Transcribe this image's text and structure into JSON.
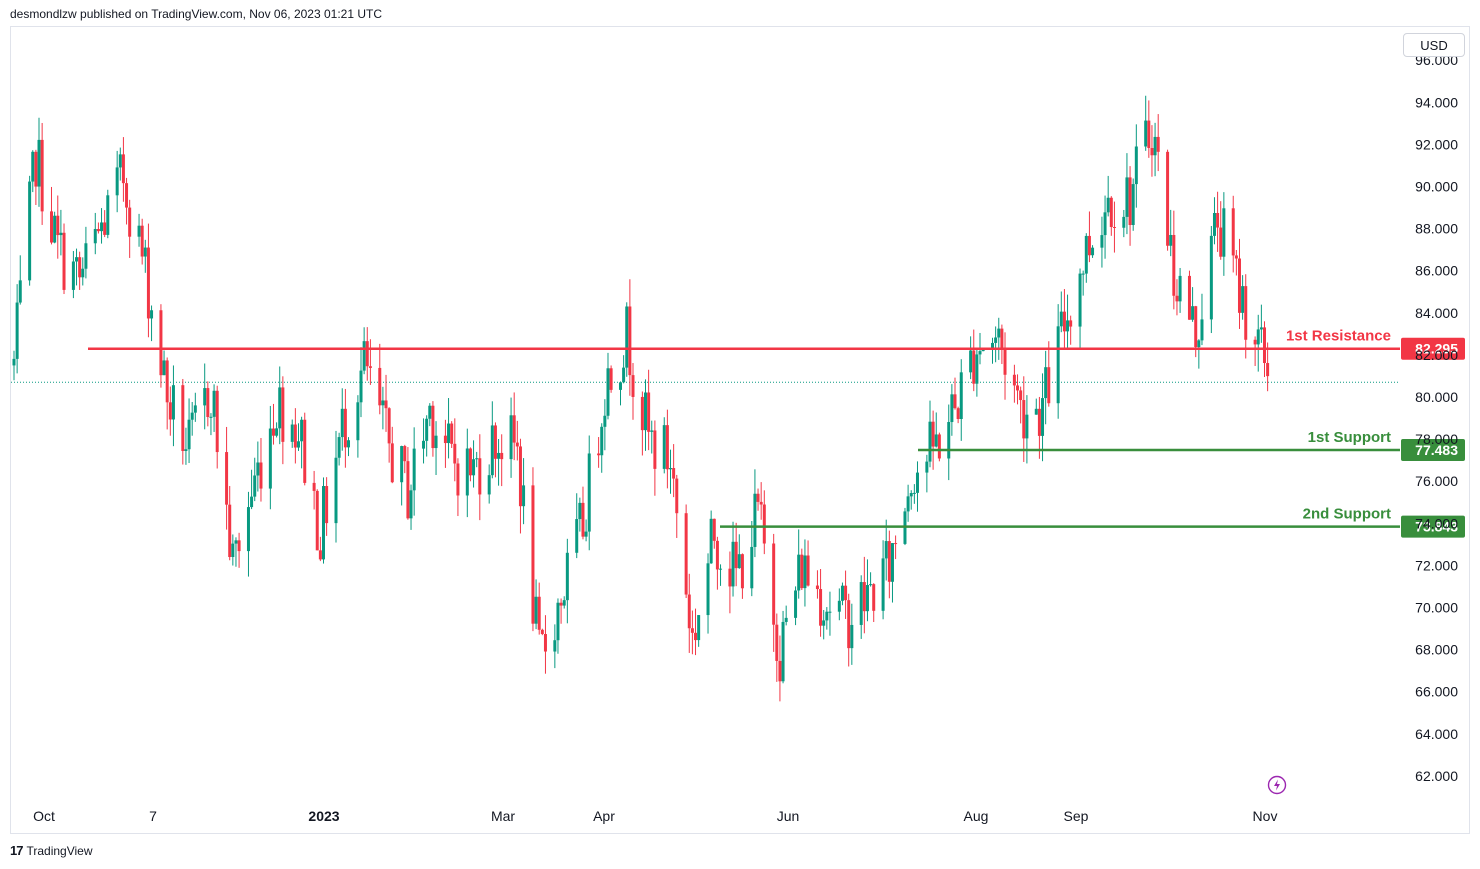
{
  "header": {
    "publisher": "desmondlzw published on TradingView.com, Nov 06, 2023 01:21 UTC"
  },
  "currency_button": "USD",
  "footer": {
    "brand": "TradingView",
    "brand_mark": "17"
  },
  "colors": {
    "up": "#089981",
    "down": "#f23645",
    "resistance": "#f23645",
    "support": "#388e3c",
    "last_price_line": "#089981"
  },
  "icons": {
    "replay": "lightning-bolt-icon"
  },
  "chart_data": {
    "type": "candlestick",
    "title": "",
    "xlabel": "",
    "ylabel": "",
    "ylim": [
      61.5,
      96.5
    ],
    "y_ticks": [
      "62.000",
      "64.000",
      "66.000",
      "68.000",
      "70.000",
      "72.000",
      "74.000",
      "76.000",
      "78.000",
      "80.000",
      "82.000",
      "84.000",
      "86.000",
      "88.000",
      "90.000",
      "92.000",
      "94.000",
      "96.000"
    ],
    "x_ticks": [
      {
        "label": "Oct",
        "bold": false
      },
      {
        "label": "7",
        "bold": false
      },
      {
        "label": "2023",
        "bold": true
      },
      {
        "label": "Mar",
        "bold": false
      },
      {
        "label": "Apr",
        "bold": false
      },
      {
        "label": "Jun",
        "bold": false
      },
      {
        "label": "Aug",
        "bold": false
      },
      {
        "label": "Sep",
        "bold": false
      },
      {
        "label": "Nov",
        "bold": false
      }
    ],
    "levels": [
      {
        "name": "1st Resistance",
        "value": 82.295,
        "value_label": "82.295",
        "kind": "resistance"
      },
      {
        "name": "1st Support",
        "value": 77.483,
        "value_label": "77.483",
        "kind": "support"
      },
      {
        "name": "2nd Support",
        "value": 73.843,
        "value_label": "73.843",
        "kind": "support"
      }
    ],
    "last_close": 80.7,
    "series": [
      {
        "name": "price",
        "x_start": "2022-09-28",
        "x_end": "2023-11-06",
        "points": [
          {
            "date": "2022-09-28",
            "c": 81.5
          },
          {
            "date": "2022-10-05",
            "c": 91.5
          },
          {
            "date": "2022-10-12",
            "c": 87.0
          },
          {
            "date": "2022-10-19",
            "c": 85.5
          },
          {
            "date": "2022-10-26",
            "c": 88.0
          },
          {
            "date": "2022-11-02",
            "c": 90.5
          },
          {
            "date": "2022-11-09",
            "c": 86.0
          },
          {
            "date": "2022-11-16",
            "c": 80.0
          },
          {
            "date": "2022-11-23",
            "c": 77.5
          },
          {
            "date": "2022-11-30",
            "c": 80.5
          },
          {
            "date": "2022-12-07",
            "c": 72.0
          },
          {
            "date": "2022-12-14",
            "c": 76.0
          },
          {
            "date": "2022-12-21",
            "c": 79.8
          },
          {
            "date": "2022-12-28",
            "c": 78.5
          },
          {
            "date": "2023-01-04",
            "c": 73.5
          },
          {
            "date": "2023-01-11",
            "c": 78.5
          },
          {
            "date": "2023-01-18",
            "c": 81.5
          },
          {
            "date": "2023-01-25",
            "c": 78.0
          },
          {
            "date": "2023-02-01",
            "c": 75.5
          },
          {
            "date": "2023-02-08",
            "c": 79.5
          },
          {
            "date": "2023-02-15",
            "c": 77.0
          },
          {
            "date": "2023-02-22",
            "c": 76.5
          },
          {
            "date": "2023-03-01",
            "c": 78.0
          },
          {
            "date": "2023-03-08",
            "c": 77.5
          },
          {
            "date": "2023-03-15",
            "c": 67.5
          },
          {
            "date": "2023-03-22",
            "c": 70.5
          },
          {
            "date": "2023-03-29",
            "c": 74.0
          },
          {
            "date": "2023-04-05",
            "c": 80.5
          },
          {
            "date": "2023-04-12",
            "c": 83.0
          },
          {
            "date": "2023-04-19",
            "c": 78.0
          },
          {
            "date": "2023-04-26",
            "c": 77.0
          },
          {
            "date": "2023-05-03",
            "c": 68.5
          },
          {
            "date": "2023-05-10",
            "c": 73.5
          },
          {
            "date": "2023-05-17",
            "c": 71.5
          },
          {
            "date": "2023-05-24",
            "c": 74.5
          },
          {
            "date": "2023-05-31",
            "c": 68.0
          },
          {
            "date": "2023-06-07",
            "c": 72.0
          },
          {
            "date": "2023-06-14",
            "c": 70.5
          },
          {
            "date": "2023-06-21",
            "c": 69.5
          },
          {
            "date": "2023-06-28",
            "c": 70.5
          },
          {
            "date": "2023-07-05",
            "c": 72.0
          },
          {
            "date": "2023-07-12",
            "c": 76.5
          },
          {
            "date": "2023-07-19",
            "c": 77.5
          },
          {
            "date": "2023-07-26",
            "c": 79.5
          },
          {
            "date": "2023-08-02",
            "c": 82.5
          },
          {
            "date": "2023-08-09",
            "c": 82.8
          },
          {
            "date": "2023-08-16",
            "c": 79.5
          },
          {
            "date": "2023-08-23",
            "c": 79.5
          },
          {
            "date": "2023-08-30",
            "c": 83.5
          },
          {
            "date": "2023-09-06",
            "c": 87.0
          },
          {
            "date": "2023-09-13",
            "c": 89.5
          },
          {
            "date": "2023-09-20",
            "c": 89.5
          },
          {
            "date": "2023-09-27",
            "c": 93.0
          },
          {
            "date": "2023-10-04",
            "c": 86.0
          },
          {
            "date": "2023-10-11",
            "c": 83.0
          },
          {
            "date": "2023-10-18",
            "c": 88.5
          },
          {
            "date": "2023-10-25",
            "c": 85.0
          },
          {
            "date": "2023-11-01",
            "c": 82.0
          },
          {
            "date": "2023-11-06",
            "c": 80.7
          }
        ]
      }
    ]
  }
}
